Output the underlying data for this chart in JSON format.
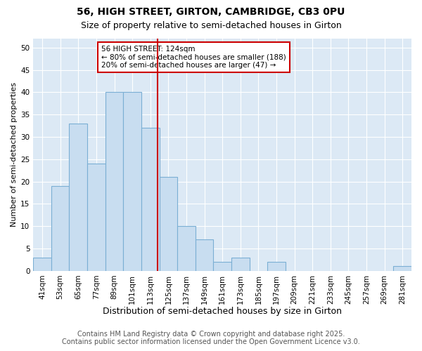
{
  "title1": "56, HIGH STREET, GIRTON, CAMBRIDGE, CB3 0PU",
  "title2": "Size of property relative to semi-detached houses in Girton",
  "xlabel": "Distribution of semi-detached houses by size in Girton",
  "ylabel": "Number of semi-detached properties",
  "bin_labels": [
    "41sqm",
    "53sqm",
    "65sqm",
    "77sqm",
    "89sqm",
    "101sqm",
    "113sqm",
    "125sqm",
    "137sqm",
    "149sqm",
    "161sqm",
    "173sqm",
    "185sqm",
    "197sqm",
    "209sqm",
    "221sqm",
    "233sqm",
    "245sqm",
    "257sqm",
    "269sqm",
    "281sqm"
  ],
  "bin_edges": [
    41,
    53,
    65,
    77,
    89,
    101,
    113,
    125,
    137,
    149,
    161,
    173,
    185,
    197,
    209,
    221,
    233,
    245,
    257,
    269,
    281,
    293
  ],
  "values": [
    3,
    19,
    33,
    24,
    40,
    40,
    32,
    21,
    10,
    7,
    2,
    3,
    0,
    2,
    0,
    0,
    0,
    0,
    0,
    0,
    1
  ],
  "bar_color": "#c8ddf0",
  "bar_edge_color": "#7bafd4",
  "plot_bg_color": "#dce9f5",
  "fig_bg_color": "#ffffff",
  "grid_color": "#ffffff",
  "property_line_x": 124,
  "property_line_color": "#cc0000",
  "annotation_text": "56 HIGH STREET: 124sqm\n← 80% of semi-detached houses are smaller (188)\n20% of semi-detached houses are larger (47) →",
  "annotation_box_edge_color": "#cc0000",
  "annotation_box_face_color": "#ffffff",
  "ylim": [
    0,
    52
  ],
  "yticks": [
    0,
    5,
    10,
    15,
    20,
    25,
    30,
    35,
    40,
    45,
    50
  ],
  "footer_line1": "Contains HM Land Registry data © Crown copyright and database right 2025.",
  "footer_line2": "Contains public sector information licensed under the Open Government Licence v3.0.",
  "title1_fontsize": 10,
  "title2_fontsize": 9,
  "xlabel_fontsize": 9,
  "ylabel_fontsize": 8,
  "tick_fontsize": 7.5,
  "annot_fontsize": 7.5,
  "footer_fontsize": 7
}
